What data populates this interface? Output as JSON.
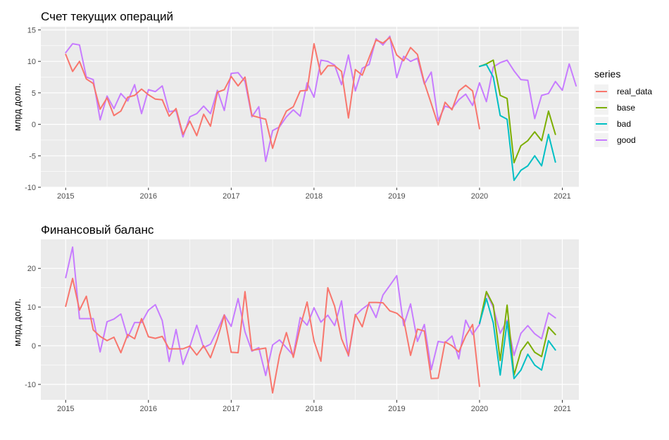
{
  "legend": {
    "title": "series",
    "entries": [
      {
        "name": "real_data",
        "color": "#F8766D"
      },
      {
        "name": "base",
        "color": "#7CAE00"
      },
      {
        "name": "bad",
        "color": "#00BFC4"
      },
      {
        "name": "good",
        "color": "#C77CFF"
      }
    ]
  },
  "chart_data": [
    {
      "type": "line",
      "title": "Счет текущих операций",
      "ylabel": "млрд долл.",
      "xlabel": "",
      "xlim": [
        2014.7,
        2021.2
      ],
      "ylim": [
        -10,
        15.5
      ],
      "yticks": [
        -10,
        -5,
        0,
        5,
        10,
        15
      ],
      "xticks": [
        2015,
        2016,
        2017,
        2018,
        2019,
        2020,
        2021
      ],
      "legend": "right",
      "grid": true,
      "series": [
        {
          "name": "good",
          "x_start": 2015.0,
          "step": 0.08333,
          "values": [
            11.4,
            12.8,
            12.6,
            7.5,
            7.1,
            0.7,
            4.5,
            2.5,
            4.9,
            3.7,
            6.3,
            1.7,
            5.5,
            5.2,
            6.1,
            2.0,
            2.2,
            -2.0,
            1.2,
            1.7,
            2.9,
            1.7,
            5.4,
            2.2,
            8.1,
            8.2,
            6.8,
            1.2,
            2.8,
            -5.9,
            -1.0,
            -0.4,
            1.2,
            2.3,
            1.3,
            6.6,
            4.3,
            10.2,
            10.0,
            9.4,
            6.3,
            11.0,
            5.3,
            8.9,
            9.5,
            13.6,
            12.6,
            14.0,
            7.4,
            10.8,
            10.0,
            10.5,
            6.4,
            8.3,
            0.6,
            2.9,
            2.5,
            3.9,
            4.8,
            3.0,
            6.6,
            3.6,
            9.1,
            9.8,
            10.2,
            8.5,
            7.1,
            7.0,
            0.9,
            4.6,
            4.9,
            6.8,
            5.4,
            9.6,
            6.1
          ]
        },
        {
          "name": "real_data",
          "x_start": 2015.0,
          "step": 0.08333,
          "values": [
            11.1,
            8.4,
            10.0,
            7.2,
            6.5,
            2.4,
            4.2,
            1.4,
            2.1,
            4.3,
            4.6,
            5.6,
            4.7,
            4.0,
            3.9,
            1.3,
            2.5,
            -1.6,
            0.5,
            -1.8,
            1.6,
            -0.3,
            5.1,
            5.5,
            7.6,
            6.1,
            7.5,
            1.4,
            1.1,
            0.8,
            -3.8,
            -0.2,
            2.1,
            2.8,
            5.3,
            5.4,
            12.8,
            7.9,
            9.3,
            9.3,
            8.4,
            1.0,
            8.7,
            7.8,
            10.6,
            13.4,
            12.9,
            13.8,
            11.0,
            10.1,
            12.2,
            11.1,
            6.6,
            3.3,
            -0.1,
            3.5,
            2.3,
            5.3,
            6.2,
            5.3,
            -0.7
          ]
        },
        {
          "name": "base",
          "x_start": 2020.0,
          "step": 0.08333,
          "values": [
            9.2,
            9.6,
            10.2,
            4.6,
            4.1,
            -6.1,
            -3.4,
            -2.6,
            -1.2,
            -2.6,
            2.1,
            -1.6
          ]
        },
        {
          "name": "bad",
          "x_start": 2020.0,
          "step": 0.08333,
          "values": [
            9.2,
            9.5,
            7.5,
            1.4,
            0.8,
            -8.9,
            -7.3,
            -6.6,
            -5.0,
            -6.6,
            -1.6,
            -6.0
          ]
        }
      ]
    },
    {
      "type": "line",
      "title": "Финансовый баланс",
      "ylabel": "млрд долл.",
      "xlabel": "",
      "xlim": [
        2014.7,
        2021.2
      ],
      "ylim": [
        -14,
        27.5
      ],
      "yticks": [
        -10,
        0,
        10,
        20
      ],
      "xticks": [
        2015,
        2016,
        2017,
        2018,
        2019,
        2020,
        2021
      ],
      "legend": "right",
      "grid": true,
      "series": [
        {
          "name": "good",
          "x_start": 2015.0,
          "step": 0.08333,
          "values": [
            17.6,
            25.5,
            7.0,
            7.0,
            7.0,
            -1.6,
            6.2,
            6.9,
            8.2,
            2.1,
            6.0,
            6.0,
            9.2,
            10.6,
            6.5,
            -4.1,
            4.2,
            -4.8,
            -0.2,
            5.3,
            -0.5,
            0.4,
            4.0,
            8.0,
            5.0,
            12.2,
            3.6,
            -1.4,
            -0.5,
            -7.7,
            0.2,
            1.5,
            -0.5,
            -2.5,
            7.3,
            5.3,
            9.8,
            6.1,
            7.9,
            5.2,
            11.6,
            -2.7,
            7.8,
            9.5,
            10.8,
            7.3,
            13.1,
            15.6,
            18.1,
            5.2,
            10.8,
            1.1,
            5.5,
            -6.2,
            1.1,
            0.8,
            2.5,
            -3.4,
            6.6,
            2.9,
            5.5,
            13.7,
            9.9,
            3.2,
            6.6,
            -2.5,
            3.2,
            5.2,
            3.1,
            1.8,
            8.5,
            7.2
          ]
        },
        {
          "name": "real_data",
          "x_start": 2015.0,
          "step": 0.08333,
          "values": [
            10.2,
            17.4,
            9.2,
            12.8,
            4.1,
            2.4,
            1.3,
            2.2,
            -1.8,
            2.9,
            1.8,
            7.0,
            2.3,
            1.9,
            2.4,
            -0.8,
            -0.8,
            -0.8,
            -0.1,
            -2.4,
            0.0,
            -3.1,
            1.8,
            7.9,
            -1.7,
            -1.8,
            14.0,
            -1.2,
            -0.9,
            -0.6,
            -12.2,
            -2.5,
            3.4,
            -3.0,
            4.9,
            11.3,
            1.2,
            -4.0,
            15.0,
            10.2,
            1.8,
            -2.5,
            8.1,
            4.9,
            11.2,
            11.2,
            11.1,
            9.0,
            8.4,
            6.8,
            -2.5,
            4.3,
            3.8,
            -8.5,
            -8.4,
            1.0,
            0.0,
            -1.6,
            2.5,
            5.5,
            -10.5
          ]
        },
        {
          "name": "base",
          "x_start": 2020.0,
          "step": 0.08333,
          "values": [
            5.8,
            14.0,
            10.5,
            -3.8,
            10.5,
            -7.6,
            -1.4,
            1.0,
            -1.7,
            -2.8,
            4.8,
            2.9
          ]
        },
        {
          "name": "bad",
          "x_start": 2020.0,
          "step": 0.08333,
          "values": [
            5.8,
            12.2,
            5.9,
            -7.6,
            6.2,
            -8.5,
            -6.3,
            -2.2,
            -5.0,
            -6.3,
            1.3,
            -1.1
          ]
        }
      ]
    }
  ]
}
